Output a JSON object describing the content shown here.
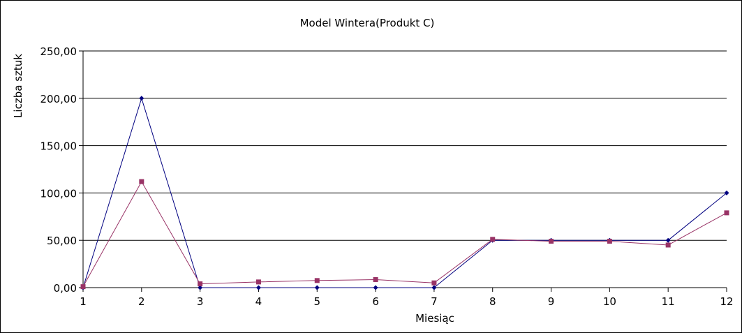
{
  "chart_data": {
    "type": "line",
    "title": "Model Wintera(Produkt C)",
    "xlabel": "Miesiąc",
    "ylabel": "Liczba sztuk",
    "x": [
      1,
      2,
      3,
      4,
      5,
      6,
      7,
      8,
      9,
      10,
      11,
      12
    ],
    "ylim": [
      0,
      250
    ],
    "yticks": [
      0,
      50,
      100,
      150,
      200,
      250
    ],
    "ytick_labels": [
      "0,00",
      "50,00",
      "100,00",
      "150,00",
      "200,00",
      "250,00"
    ],
    "grid": true,
    "legend": "none",
    "series": [
      {
        "color": "#000080",
        "marker": "diamond",
        "values": [
          0,
          200,
          0,
          0,
          0,
          0,
          0,
          50,
          50,
          50,
          50,
          100
        ]
      },
      {
        "color": "#993366",
        "marker": "square",
        "values": [
          1,
          112,
          4,
          6,
          7.5,
          8.5,
          5,
          51,
          49,
          49,
          45,
          79
        ]
      }
    ]
  }
}
